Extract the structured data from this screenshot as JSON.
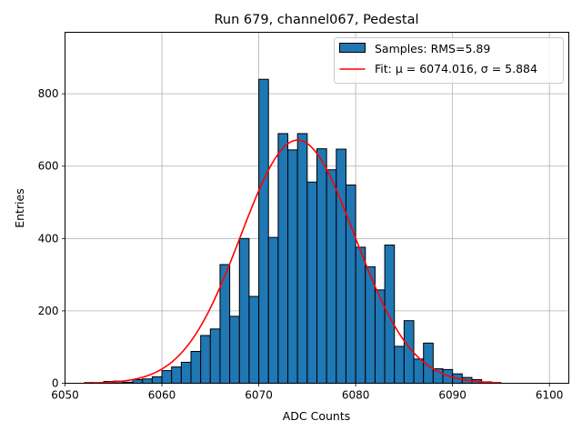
{
  "chart_data": {
    "type": "bar",
    "title": "Run 679, channel067, Pedestal",
    "xlabel": "ADC Counts",
    "ylabel": "Entries",
    "xlim": [
      6050,
      6102
    ],
    "ylim": [
      0,
      970
    ],
    "grid": true,
    "legend_position": "top-right",
    "xticks": [
      "6050",
      "6060",
      "6070",
      "6080",
      "6090",
      "6100"
    ],
    "yticks": [
      "0",
      "200",
      "400",
      "600",
      "800"
    ],
    "bin_edges": [
      6052,
      6053,
      6054,
      6055,
      6056,
      6057,
      6058,
      6059,
      6060,
      6061,
      6062,
      6063,
      6064,
      6065,
      6066,
      6067,
      6068,
      6069,
      6070,
      6071,
      6072,
      6073,
      6074,
      6075,
      6076,
      6077,
      6078,
      6079,
      6080,
      6081,
      6082,
      6083,
      6084,
      6085,
      6086,
      6087,
      6088,
      6089,
      6090,
      6091,
      6092,
      6093,
      6094,
      6095
    ],
    "values": [
      2,
      1,
      5,
      6,
      3,
      10,
      12,
      18,
      35,
      45,
      58,
      88,
      132,
      150,
      328,
      185,
      400,
      240,
      840,
      403,
      690,
      645,
      690,
      556,
      648,
      590,
      647,
      548,
      376,
      322,
      258,
      382,
      102,
      173,
      67,
      111,
      40,
      38,
      26,
      16,
      10,
      4,
      2
    ],
    "series": [
      {
        "name": "Samples: RMS=5.89",
        "kind": "histogram",
        "color": "#1f77b4",
        "edgecolor": "#000000"
      },
      {
        "name": "Fit: μ = 6074.016, σ = 5.884",
        "kind": "gaussian-fit",
        "color": "#ff0000",
        "mu": 6074.016,
        "sigma": 5.884,
        "amplitude": 672,
        "x_range": [
          6052,
          6095
        ]
      }
    ]
  }
}
